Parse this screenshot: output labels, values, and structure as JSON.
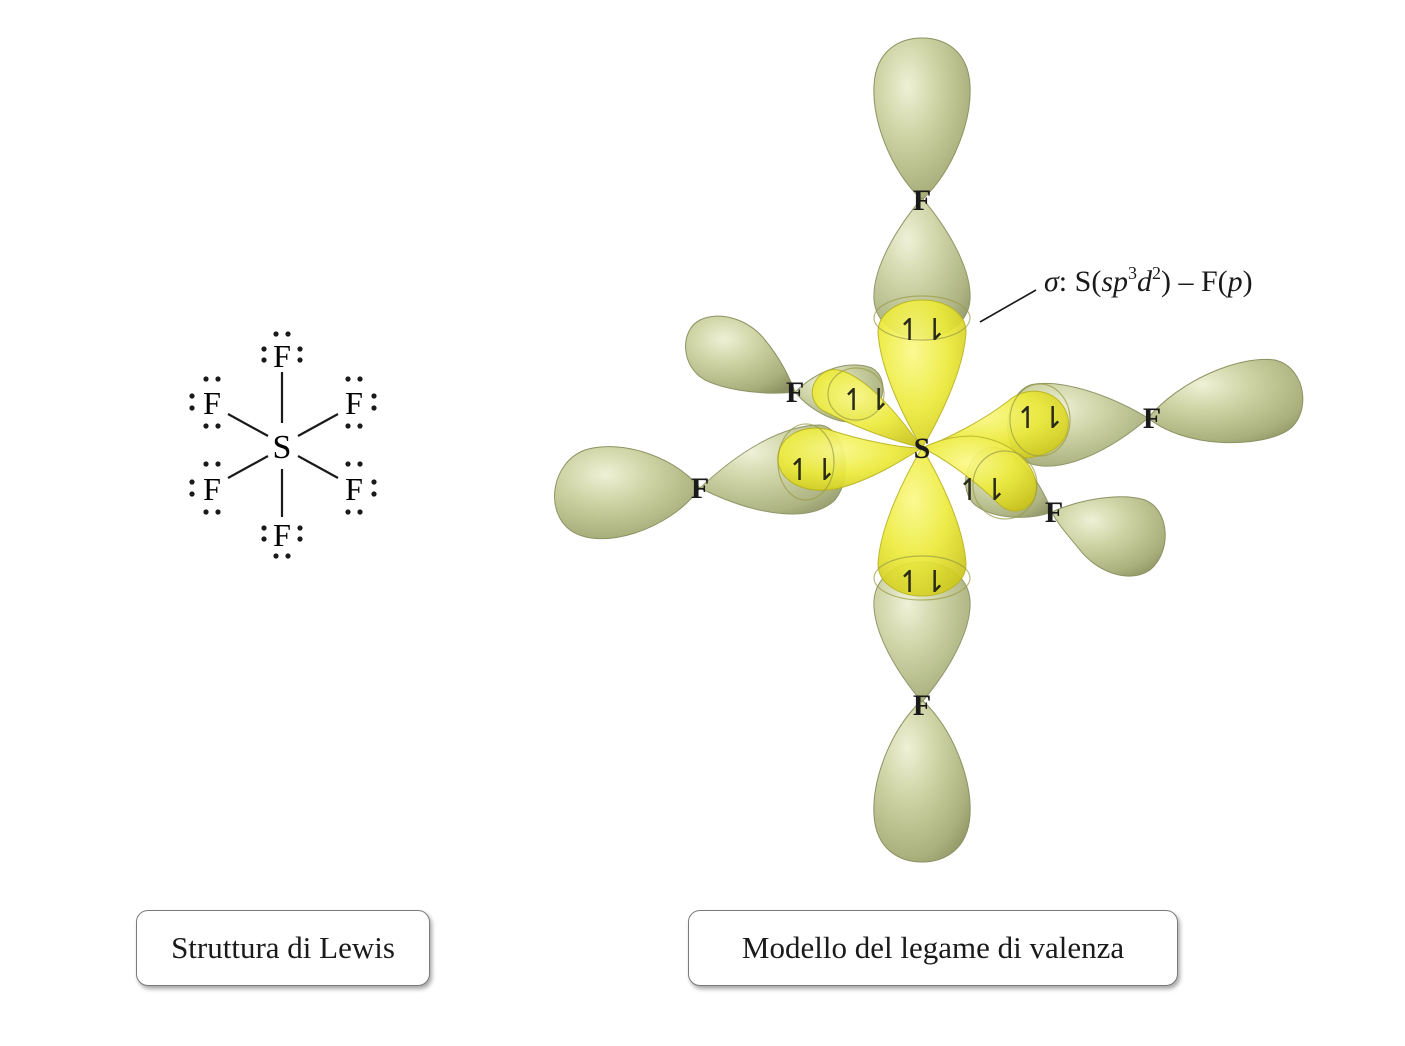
{
  "lewis": {
    "central_atom": "S",
    "ligand_atom": "F",
    "caption": "Struttura di Lewis"
  },
  "valence_bond": {
    "central_atom": "S",
    "ligand_atom": "F",
    "electron_pair": "↿⇂",
    "sigma_symbol": "σ",
    "sigma_label_prefix": ": S(",
    "sigma_label_sp": "sp",
    "sigma_label_sup3": "3",
    "sigma_label_d": "d",
    "sigma_label_sup2": "2",
    "sigma_label_mid": ") – F(",
    "sigma_label_p": "p",
    "sigma_label_end": ")",
    "caption": "Modello del legame di valenza"
  },
  "colors": {
    "fluorine_orbital": "#c4cc9a",
    "sulfur_hybrid": "#ecea3a",
    "line": "#1a1a1a"
  }
}
